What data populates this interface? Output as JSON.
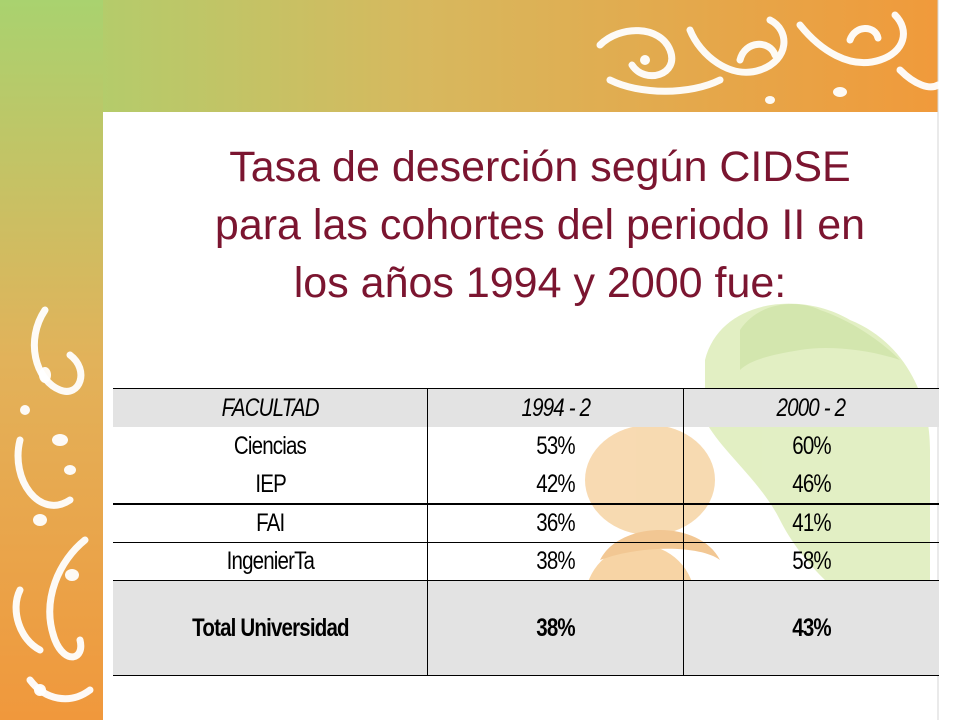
{
  "slide": {
    "title_lines": [
      "Tasa de deserción según CIDSE",
      "para las cohortes del periodo II en",
      "los años 1994 y 2000 fue:"
    ]
  },
  "table": {
    "headers": [
      "FACULTAD",
      "1994 - 2",
      "2000 - 2"
    ],
    "rows": [
      [
        "Ciencias",
        "53%",
        "60%"
      ],
      [
        "IEP",
        "42%",
        "46%"
      ],
      [
        "FAI",
        "36%",
        "41%"
      ],
      [
        "IngenierTa",
        "38%",
        "58%"
      ]
    ],
    "total": [
      "Total Universidad",
      "38%",
      "43%"
    ]
  },
  "colors": {
    "title": "#7b1530",
    "frame_green": "#a9d26f",
    "frame_gold": "#d9b35a",
    "frame_orange": "#ef9a3c",
    "shaded_row": "#e3e3e3"
  }
}
